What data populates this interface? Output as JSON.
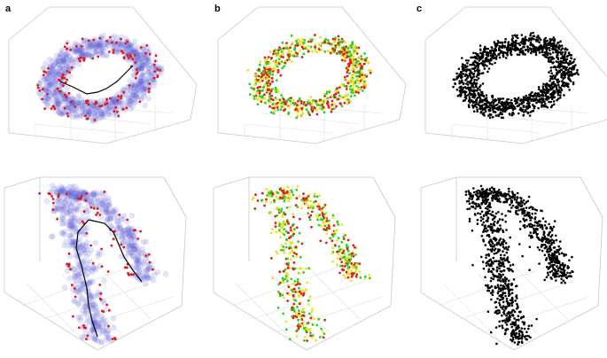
{
  "panel_labels": {
    "a": "a",
    "b": "b",
    "c": "c"
  },
  "colors": {
    "background": "#ffffff",
    "box_edge": "#c8c8c8",
    "grid": "#dedede",
    "density_cloud": "#5a5ad2",
    "boundary_points": "#e01818",
    "path_line": "#000000",
    "gradient_low": "#e02010",
    "gradient_mid": "#f0e020",
    "gradient_high": "#30d020",
    "points_black": "#000000"
  },
  "panels": [
    {
      "column": "a",
      "row": "top",
      "shape": "torus",
      "style": "cloud-with-boundary-and-path"
    },
    {
      "column": "b",
      "row": "top",
      "shape": "torus",
      "style": "gradient-points"
    },
    {
      "column": "c",
      "row": "top",
      "shape": "torus",
      "style": "black-points"
    },
    {
      "column": "a",
      "row": "bottom",
      "shape": "arch",
      "style": "cloud-with-boundary-and-path"
    },
    {
      "column": "b",
      "row": "bottom",
      "shape": "arch",
      "style": "gradient-points"
    },
    {
      "column": "c",
      "row": "bottom",
      "shape": "arch",
      "style": "black-points"
    }
  ]
}
